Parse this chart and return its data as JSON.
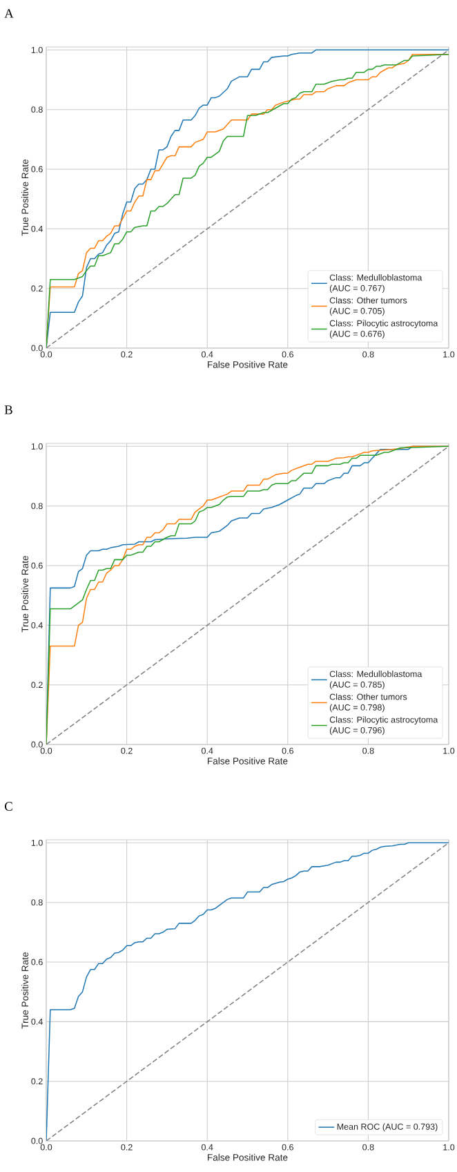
{
  "chart_data": [
    {
      "type": "line",
      "title": "A",
      "xlabel": "False Positive Rate",
      "ylabel": "True Positive Rate",
      "xlim": [
        0,
        1
      ],
      "ylim": [
        0,
        1.01
      ],
      "xticks": [
        {
          "value": 0,
          "label": "0.0"
        },
        {
          "value": 0.2,
          "label": "0.2"
        },
        {
          "value": 0.4,
          "label": "0.4"
        },
        {
          "value": 0.6,
          "label": "0.6"
        },
        {
          "value": 0.8,
          "label": "0.8"
        },
        {
          "value": 1,
          "label": "1.0"
        }
      ],
      "yticks": [
        {
          "value": 0,
          "label": "0.0"
        },
        {
          "value": 0.2,
          "label": "0.2"
        },
        {
          "value": 0.4,
          "label": "0.4"
        },
        {
          "value": 0.6,
          "label": "0.6"
        },
        {
          "value": 0.8,
          "label": "0.8"
        },
        {
          "value": 1,
          "label": "1.0"
        }
      ],
      "grid": true,
      "legend": "bottom right",
      "series": [
        {
          "name": "Class: Medulloblastoma\n(AUC = 0.767)",
          "color": "#1f77b4",
          "x": [
            0,
            0.01,
            0.07,
            0.08,
            0.09,
            0.1,
            0.11,
            0.12,
            0.13,
            0.14,
            0.15,
            0.16,
            0.17,
            0.18,
            0.19,
            0.2,
            0.21,
            0.22,
            0.23,
            0.24,
            0.25,
            0.26,
            0.27,
            0.28,
            0.29,
            0.3,
            0.31,
            0.32,
            0.33,
            0.34,
            0.36,
            0.37,
            0.38,
            0.39,
            0.4,
            0.41,
            0.42,
            0.43,
            0.45,
            0.46,
            0.48,
            0.5,
            0.51,
            0.53,
            0.54,
            0.55,
            0.56,
            0.59,
            0.6,
            0.61,
            0.63,
            0.66,
            0.67,
            1.0
          ],
          "values": [
            0,
            0.12,
            0.12,
            0.155,
            0.175,
            0.27,
            0.3,
            0.3,
            0.315,
            0.32,
            0.345,
            0.36,
            0.385,
            0.39,
            0.45,
            0.49,
            0.49,
            0.535,
            0.55,
            0.55,
            0.565,
            0.6,
            0.6,
            0.665,
            0.665,
            0.675,
            0.71,
            0.73,
            0.73,
            0.765,
            0.765,
            0.78,
            0.805,
            0.815,
            0.815,
            0.84,
            0.84,
            0.845,
            0.87,
            0.895,
            0.91,
            0.91,
            0.935,
            0.935,
            0.96,
            0.96,
            0.975,
            0.98,
            0.98,
            0.985,
            0.99,
            0.99,
            1.0,
            1.0
          ]
        },
        {
          "name": "Class: Other tumors\n(AUC = 0.705)",
          "color": "#ff7f0e",
          "x": [
            0,
            0.01,
            0.07,
            0.08,
            0.09,
            0.1,
            0.11,
            0.12,
            0.13,
            0.14,
            0.15,
            0.16,
            0.17,
            0.18,
            0.2,
            0.21,
            0.22,
            0.23,
            0.24,
            0.25,
            0.26,
            0.27,
            0.28,
            0.3,
            0.31,
            0.32,
            0.33,
            0.36,
            0.37,
            0.39,
            0.4,
            0.42,
            0.44,
            0.46,
            0.5,
            0.51,
            0.54,
            0.55,
            0.56,
            0.57,
            0.59,
            0.62,
            0.63,
            0.64,
            0.66,
            0.67,
            0.69,
            0.7,
            0.72,
            0.74,
            0.75,
            0.77,
            0.8,
            0.81,
            0.82,
            0.83,
            0.85,
            0.86,
            0.87,
            0.89,
            0.9,
            0.91,
            1.0
          ],
          "values": [
            0,
            0.205,
            0.205,
            0.25,
            0.26,
            0.32,
            0.335,
            0.335,
            0.36,
            0.36,
            0.375,
            0.385,
            0.41,
            0.41,
            0.46,
            0.46,
            0.49,
            0.51,
            0.51,
            0.565,
            0.565,
            0.595,
            0.595,
            0.64,
            0.645,
            0.645,
            0.675,
            0.675,
            0.69,
            0.7,
            0.725,
            0.725,
            0.735,
            0.765,
            0.765,
            0.785,
            0.785,
            0.8,
            0.8,
            0.815,
            0.825,
            0.835,
            0.835,
            0.85,
            0.85,
            0.86,
            0.86,
            0.87,
            0.88,
            0.88,
            0.89,
            0.9,
            0.9,
            0.91,
            0.91,
            0.925,
            0.94,
            0.94,
            0.95,
            0.955,
            0.965,
            0.985,
            0.985
          ]
        },
        {
          "name": "Class: Pilocytic astrocytoma\n(AUC = 0.676)",
          "color": "#2ca02c",
          "x": [
            0,
            0.01,
            0.07,
            0.09,
            0.1,
            0.11,
            0.12,
            0.13,
            0.14,
            0.16,
            0.17,
            0.18,
            0.19,
            0.2,
            0.21,
            0.22,
            0.24,
            0.25,
            0.26,
            0.27,
            0.28,
            0.29,
            0.3,
            0.31,
            0.32,
            0.33,
            0.34,
            0.36,
            0.37,
            0.38,
            0.39,
            0.4,
            0.41,
            0.43,
            0.44,
            0.45,
            0.49,
            0.5,
            0.52,
            0.54,
            0.55,
            0.57,
            0.59,
            0.6,
            0.61,
            0.62,
            0.63,
            0.64,
            0.66,
            0.67,
            0.69,
            0.71,
            0.73,
            0.74,
            0.75,
            0.76,
            0.77,
            0.79,
            0.8,
            0.81,
            0.82,
            0.83,
            0.84,
            0.86,
            0.87,
            0.89,
            0.9,
            0.91,
            1.0
          ],
          "values": [
            0,
            0.23,
            0.23,
            0.24,
            0.26,
            0.275,
            0.275,
            0.31,
            0.31,
            0.32,
            0.35,
            0.35,
            0.365,
            0.39,
            0.39,
            0.405,
            0.41,
            0.41,
            0.46,
            0.46,
            0.475,
            0.475,
            0.485,
            0.5,
            0.515,
            0.515,
            0.57,
            0.57,
            0.58,
            0.61,
            0.62,
            0.64,
            0.64,
            0.66,
            0.695,
            0.71,
            0.71,
            0.78,
            0.78,
            0.79,
            0.79,
            0.805,
            0.82,
            0.82,
            0.835,
            0.84,
            0.855,
            0.86,
            0.86,
            0.885,
            0.885,
            0.895,
            0.9,
            0.9,
            0.905,
            0.905,
            0.925,
            0.925,
            0.935,
            0.935,
            0.945,
            0.945,
            0.95,
            0.95,
            0.95,
            0.965,
            0.965,
            0.98,
            0.985
          ]
        },
        {
          "type": "line",
          "color": "#808080",
          "line_style": "dashed",
          "x": [
            0,
            1
          ],
          "values": [
            0,
            1
          ]
        }
      ]
    },
    {
      "type": "line",
      "title": "B",
      "xlabel": "False Positive Rate",
      "ylabel": "True Positive Rate",
      "xlim": [
        0,
        1
      ],
      "ylim": [
        0,
        1.01
      ],
      "xticks": [
        {
          "value": 0,
          "label": "0.0"
        },
        {
          "value": 0.2,
          "label": "0.2"
        },
        {
          "value": 0.4,
          "label": "0.4"
        },
        {
          "value": 0.6,
          "label": "0.6"
        },
        {
          "value": 0.8,
          "label": "0.8"
        },
        {
          "value": 1,
          "label": "1.0"
        }
      ],
      "yticks": [
        {
          "value": 0,
          "label": "0.0"
        },
        {
          "value": 0.2,
          "label": "0.2"
        },
        {
          "value": 0.4,
          "label": "0.4"
        },
        {
          "value": 0.6,
          "label": "0.6"
        },
        {
          "value": 0.8,
          "label": "0.8"
        },
        {
          "value": 1,
          "label": "1.0"
        }
      ],
      "grid": true,
      "legend": "bottom right",
      "series": [
        {
          "name": "Class: Medulloblastoma\n(AUC = 0.785)",
          "color": "#1f77b4",
          "x": [
            0,
            0.01,
            0.06,
            0.07,
            0.08,
            0.09,
            0.1,
            0.11,
            0.13,
            0.14,
            0.15,
            0.16,
            0.18,
            0.19,
            0.22,
            0.23,
            0.26,
            0.27,
            0.3,
            0.35,
            0.37,
            0.4,
            0.41,
            0.43,
            0.45,
            0.46,
            0.48,
            0.5,
            0.51,
            0.53,
            0.54,
            0.56,
            0.58,
            0.6,
            0.62,
            0.63,
            0.64,
            0.66,
            0.67,
            0.69,
            0.7,
            0.72,
            0.73,
            0.74,
            0.75,
            0.76,
            0.78,
            0.79,
            0.8,
            0.81,
            0.82,
            0.83,
            0.9,
            0.91,
            1.0
          ],
          "values": [
            0,
            0.525,
            0.525,
            0.53,
            0.58,
            0.59,
            0.635,
            0.65,
            0.65,
            0.655,
            0.655,
            0.66,
            0.665,
            0.67,
            0.672,
            0.68,
            0.68,
            0.687,
            0.69,
            0.692,
            0.695,
            0.695,
            0.71,
            0.715,
            0.735,
            0.75,
            0.76,
            0.76,
            0.775,
            0.775,
            0.79,
            0.795,
            0.805,
            0.82,
            0.835,
            0.84,
            0.86,
            0.86,
            0.875,
            0.875,
            0.885,
            0.895,
            0.895,
            0.91,
            0.91,
            0.935,
            0.935,
            0.945,
            0.945,
            0.96,
            0.975,
            0.99,
            0.99,
            1.0,
            1.0
          ]
        },
        {
          "name": "Class: Other tumors\n(AUC = 0.798)",
          "color": "#ff7f0e",
          "x": [
            0,
            0.01,
            0.07,
            0.08,
            0.09,
            0.1,
            0.11,
            0.12,
            0.13,
            0.14,
            0.15,
            0.16,
            0.17,
            0.18,
            0.19,
            0.2,
            0.21,
            0.22,
            0.23,
            0.24,
            0.25,
            0.26,
            0.27,
            0.28,
            0.29,
            0.3,
            0.32,
            0.33,
            0.36,
            0.37,
            0.38,
            0.39,
            0.4,
            0.41,
            0.43,
            0.45,
            0.46,
            0.49,
            0.5,
            0.53,
            0.54,
            0.55,
            0.57,
            0.59,
            0.6,
            0.61,
            0.63,
            0.65,
            0.66,
            0.67,
            0.7,
            0.72,
            0.74,
            0.75,
            0.76,
            0.78,
            0.79,
            0.8,
            0.81,
            0.83,
            0.86,
            0.89,
            0.91,
            1.0
          ],
          "values": [
            0,
            0.33,
            0.33,
            0.4,
            0.41,
            0.49,
            0.52,
            0.52,
            0.545,
            0.545,
            0.575,
            0.585,
            0.6,
            0.6,
            0.62,
            0.655,
            0.655,
            0.665,
            0.67,
            0.67,
            0.695,
            0.695,
            0.71,
            0.71,
            0.72,
            0.74,
            0.74,
            0.755,
            0.755,
            0.78,
            0.79,
            0.8,
            0.82,
            0.82,
            0.83,
            0.84,
            0.85,
            0.85,
            0.87,
            0.87,
            0.89,
            0.89,
            0.905,
            0.91,
            0.91,
            0.92,
            0.93,
            0.94,
            0.94,
            0.95,
            0.95,
            0.96,
            0.962,
            0.965,
            0.965,
            0.975,
            0.98,
            0.98,
            0.985,
            0.987,
            0.99,
            0.995,
            1.0,
            1.0
          ]
        },
        {
          "name": "Class: Pilocytic astrocytoma\n(AUC = 0.796)",
          "color": "#2ca02c",
          "x": [
            0,
            0.01,
            0.06,
            0.07,
            0.09,
            0.1,
            0.11,
            0.12,
            0.13,
            0.14,
            0.15,
            0.16,
            0.17,
            0.19,
            0.2,
            0.21,
            0.22,
            0.23,
            0.24,
            0.25,
            0.26,
            0.27,
            0.28,
            0.3,
            0.31,
            0.32,
            0.33,
            0.36,
            0.37,
            0.38,
            0.39,
            0.4,
            0.41,
            0.43,
            0.44,
            0.45,
            0.46,
            0.49,
            0.5,
            0.53,
            0.54,
            0.55,
            0.56,
            0.57,
            0.6,
            0.61,
            0.62,
            0.64,
            0.66,
            0.67,
            0.7,
            0.71,
            0.73,
            0.74,
            0.75,
            0.76,
            0.77,
            0.78,
            0.82,
            0.84,
            0.85,
            0.86,
            0.87,
            0.88,
            1.0
          ],
          "values": [
            0,
            0.455,
            0.455,
            0.465,
            0.485,
            0.52,
            0.55,
            0.55,
            0.585,
            0.585,
            0.59,
            0.59,
            0.62,
            0.62,
            0.635,
            0.635,
            0.64,
            0.645,
            0.645,
            0.665,
            0.665,
            0.68,
            0.68,
            0.695,
            0.7,
            0.7,
            0.74,
            0.74,
            0.75,
            0.78,
            0.785,
            0.795,
            0.795,
            0.805,
            0.82,
            0.83,
            0.832,
            0.832,
            0.85,
            0.85,
            0.855,
            0.855,
            0.87,
            0.875,
            0.875,
            0.885,
            0.885,
            0.91,
            0.91,
            0.935,
            0.935,
            0.94,
            0.94,
            0.945,
            0.945,
            0.96,
            0.96,
            0.97,
            0.97,
            0.98,
            0.98,
            0.985,
            0.99,
            0.995,
            1.0
          ]
        },
        {
          "type": "line",
          "color": "#808080",
          "line_style": "dashed",
          "x": [
            0,
            1
          ],
          "values": [
            0,
            1
          ]
        }
      ]
    },
    {
      "type": "line",
      "title": "C",
      "xlabel": "False Positive Rate",
      "ylabel": "True Positive Rate",
      "xlim": [
        0,
        1
      ],
      "ylim": [
        0,
        1.01
      ],
      "xticks": [
        {
          "value": 0,
          "label": "0.0"
        },
        {
          "value": 0.2,
          "label": "0.2"
        },
        {
          "value": 0.4,
          "label": "0.4"
        },
        {
          "value": 0.6,
          "label": "0.6"
        },
        {
          "value": 0.8,
          "label": "0.8"
        },
        {
          "value": 1,
          "label": "1.0"
        }
      ],
      "yticks": [
        {
          "value": 0,
          "label": "0.0"
        },
        {
          "value": 0.2,
          "label": "0.2"
        },
        {
          "value": 0.4,
          "label": "0.4"
        },
        {
          "value": 0.6,
          "label": "0.6"
        },
        {
          "value": 0.8,
          "label": "0.8"
        },
        {
          "value": 1,
          "label": "1.0"
        }
      ],
      "grid": true,
      "legend": "bottom right",
      "series": [
        {
          "name": "Mean ROC (AUC = 0.793)",
          "color": "#1f77b4",
          "x": [
            0,
            0.01,
            0.06,
            0.07,
            0.08,
            0.09,
            0.1,
            0.11,
            0.12,
            0.13,
            0.14,
            0.15,
            0.16,
            0.17,
            0.18,
            0.19,
            0.2,
            0.21,
            0.22,
            0.23,
            0.24,
            0.25,
            0.26,
            0.27,
            0.28,
            0.29,
            0.3,
            0.32,
            0.33,
            0.36,
            0.37,
            0.38,
            0.39,
            0.4,
            0.41,
            0.42,
            0.43,
            0.44,
            0.45,
            0.46,
            0.49,
            0.5,
            0.53,
            0.54,
            0.55,
            0.56,
            0.58,
            0.59,
            0.6,
            0.61,
            0.62,
            0.63,
            0.64,
            0.65,
            0.66,
            0.68,
            0.7,
            0.72,
            0.73,
            0.74,
            0.75,
            0.76,
            0.77,
            0.78,
            0.79,
            0.8,
            0.81,
            0.82,
            0.83,
            0.84,
            0.86,
            0.88,
            0.89,
            0.9,
            1.0
          ],
          "values": [
            0,
            0.44,
            0.44,
            0.445,
            0.485,
            0.5,
            0.55,
            0.575,
            0.575,
            0.595,
            0.595,
            0.61,
            0.615,
            0.63,
            0.632,
            0.64,
            0.655,
            0.655,
            0.665,
            0.668,
            0.668,
            0.68,
            0.68,
            0.695,
            0.695,
            0.7,
            0.71,
            0.712,
            0.73,
            0.73,
            0.74,
            0.755,
            0.76,
            0.775,
            0.775,
            0.78,
            0.79,
            0.8,
            0.81,
            0.815,
            0.815,
            0.835,
            0.835,
            0.85,
            0.85,
            0.86,
            0.868,
            0.87,
            0.878,
            0.882,
            0.89,
            0.902,
            0.905,
            0.905,
            0.92,
            0.92,
            0.925,
            0.935,
            0.935,
            0.94,
            0.94,
            0.955,
            0.955,
            0.958,
            0.965,
            0.965,
            0.975,
            0.978,
            0.985,
            0.988,
            0.99,
            0.995,
            0.995,
            1.0,
            1.0
          ]
        },
        {
          "type": "line",
          "color": "#808080",
          "line_style": "dashed",
          "x": [
            0,
            1
          ],
          "values": [
            0,
            1
          ]
        }
      ]
    }
  ]
}
